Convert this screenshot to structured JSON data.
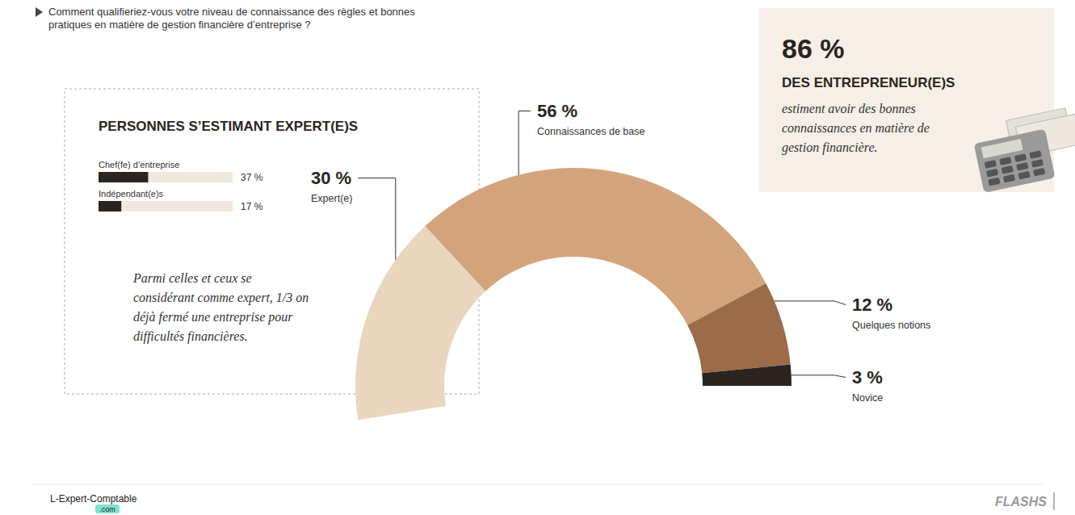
{
  "chart_data": [
    {
      "type": "pie",
      "title": "Comment qualifieriez-vous votre niveau de connaissance des règles et bonnes pratiques en matière de gestion financière d’entreprise ?",
      "categories": [
        "Expert(e)",
        "Connaissances de base",
        "Quelques notions",
        "Novice"
      ],
      "values": [
        30,
        56,
        12,
        3
      ],
      "value_labels": [
        "30 %",
        "56 %",
        "12 %",
        "3 %"
      ],
      "colors": [
        "#ead6be",
        "#d3a47c",
        "#9c6b49",
        "#2b2420"
      ],
      "data_labels": true,
      "annotations": [
        {
          "label": "86 %",
          "title": "DES ENTREPRENEUR(E)S",
          "text": "estiment avoir des bonnes connaissances en matière de gestion financière."
        }
      ]
    },
    {
      "type": "bar",
      "orientation": "horizontal",
      "title": "PERSONNES S’ESTIMANT EXPERT(E)S",
      "categories": [
        "Chef(fe) d’entreprise",
        "Indépendant(e)s"
      ],
      "values": [
        37,
        17
      ],
      "value_labels": [
        "37 %",
        "17 %"
      ],
      "xlim": [
        0,
        100
      ],
      "color": "#2b2420",
      "tick_labels": false,
      "data_labels": true,
      "annotations": [
        {
          "text": "Parmi celles et ceux se considérant comme expert, 1/3 on déjà fermé une entreprise pour difficultés financières."
        }
      ]
    }
  ],
  "footer": {
    "brand": "L-Expert-Comptable",
    "brand_suffix": ".com",
    "source": "FLASHS"
  }
}
